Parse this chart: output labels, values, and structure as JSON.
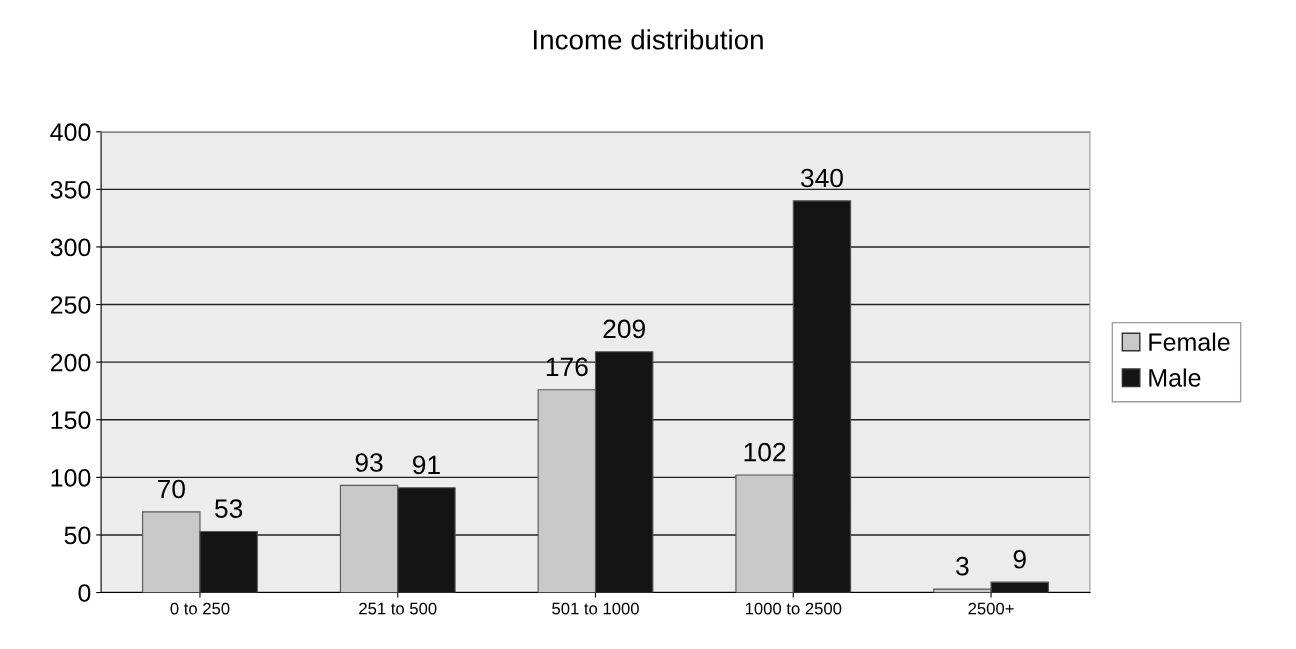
{
  "chart_data": {
    "type": "bar",
    "title": "Income distribution",
    "categories": [
      "0 to 250",
      "251 to 500",
      "501 to 1000",
      "1000 to 2500",
      "2500+"
    ],
    "series": [
      {
        "name": "Female",
        "color": "#c8c8c8",
        "values": [
          70,
          93,
          176,
          102,
          3
        ]
      },
      {
        "name": "Male",
        "color": "#141414",
        "values": [
          53,
          91,
          209,
          340,
          9
        ]
      }
    ],
    "ylim": [
      0,
      400
    ],
    "yticks": [
      0,
      50,
      100,
      150,
      200,
      250,
      300,
      350,
      400
    ],
    "grid": "y",
    "legend": "right",
    "data_labels": true
  }
}
